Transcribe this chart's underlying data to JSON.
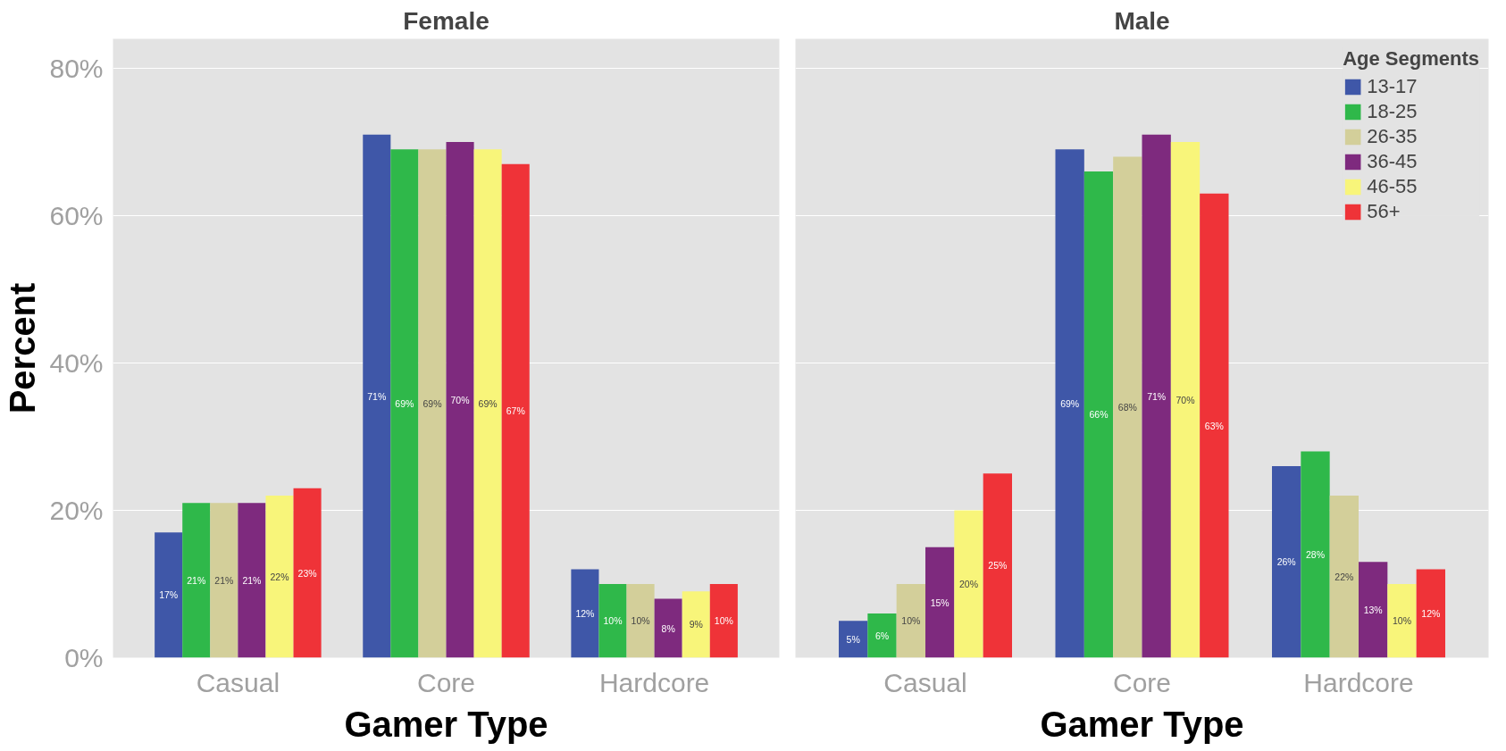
{
  "chart_data": [
    {
      "type": "bar",
      "title": "Female",
      "xlabel": "Gamer Type",
      "ylabel": "Percent",
      "categories": [
        "Casual",
        "Core",
        "Hardcore"
      ],
      "ylim": [
        0,
        84
      ],
      "yticks": [
        {
          "value": 0,
          "label": "0%"
        },
        {
          "value": 20,
          "label": "20%"
        },
        {
          "value": 40,
          "label": "40%"
        },
        {
          "value": 60,
          "label": "60%"
        },
        {
          "value": 80,
          "label": "80%"
        }
      ],
      "grid": "y",
      "series": [
        {
          "color": "#3f57a8",
          "values": [
            17,
            71,
            12
          ],
          "value_labels": [
            "17%",
            "71%",
            "12%"
          ]
        },
        {
          "color": "#2fb84a",
          "values": [
            21,
            69,
            10
          ],
          "value_labels": [
            "21%",
            "69%",
            "10%"
          ]
        },
        {
          "color": "#d3cf9a",
          "values": [
            21,
            69,
            10
          ],
          "value_labels": [
            "21%",
            "69%",
            "10%"
          ]
        },
        {
          "color": "#7e2a7e",
          "values": [
            21,
            70,
            8
          ],
          "value_labels": [
            "21%",
            "70%",
            "8%"
          ]
        },
        {
          "color": "#f8f57a",
          "values": [
            22,
            69,
            9
          ],
          "value_labels": [
            "22%",
            "69%",
            "9%"
          ]
        },
        {
          "color": "#ef3338",
          "values": [
            23,
            67,
            10
          ],
          "value_labels": [
            "23%",
            "67%",
            "10%"
          ]
        }
      ]
    },
    {
      "type": "bar",
      "title": "Male",
      "xlabel": "Gamer Type",
      "categories": [
        "Casual",
        "Core",
        "Hardcore"
      ],
      "ylim": [
        0,
        84
      ],
      "yticks": [
        0,
        20,
        40,
        60,
        80
      ],
      "grid": "y",
      "tick_labels": "x",
      "legend": "top right",
      "legend_title": "Age Segments",
      "series": [
        {
          "name": "13-17",
          "color": "#3f57a8",
          "values": [
            5,
            69,
            26
          ],
          "value_labels": [
            "5%",
            "69%",
            "26%"
          ]
        },
        {
          "name": "18-25",
          "color": "#2fb84a",
          "values": [
            6,
            66,
            28
          ],
          "value_labels": [
            "6%",
            "66%",
            "28%"
          ]
        },
        {
          "name": "26-35",
          "color": "#d3cf9a",
          "values": [
            10,
            68,
            22
          ],
          "value_labels": [
            "10%",
            "68%",
            "22%"
          ]
        },
        {
          "name": "36-45",
          "color": "#7e2a7e",
          "values": [
            15,
            71,
            13
          ],
          "value_labels": [
            "15%",
            "71%",
            "13%"
          ]
        },
        {
          "name": "46-55",
          "color": "#f8f57a",
          "values": [
            20,
            70,
            10
          ],
          "value_labels": [
            "20%",
            "70%",
            "10%"
          ]
        },
        {
          "name": "56+",
          "color": "#ef3338",
          "values": [
            25,
            63,
            12
          ],
          "value_labels": [
            "25%",
            "63%",
            "12%"
          ]
        }
      ]
    }
  ]
}
